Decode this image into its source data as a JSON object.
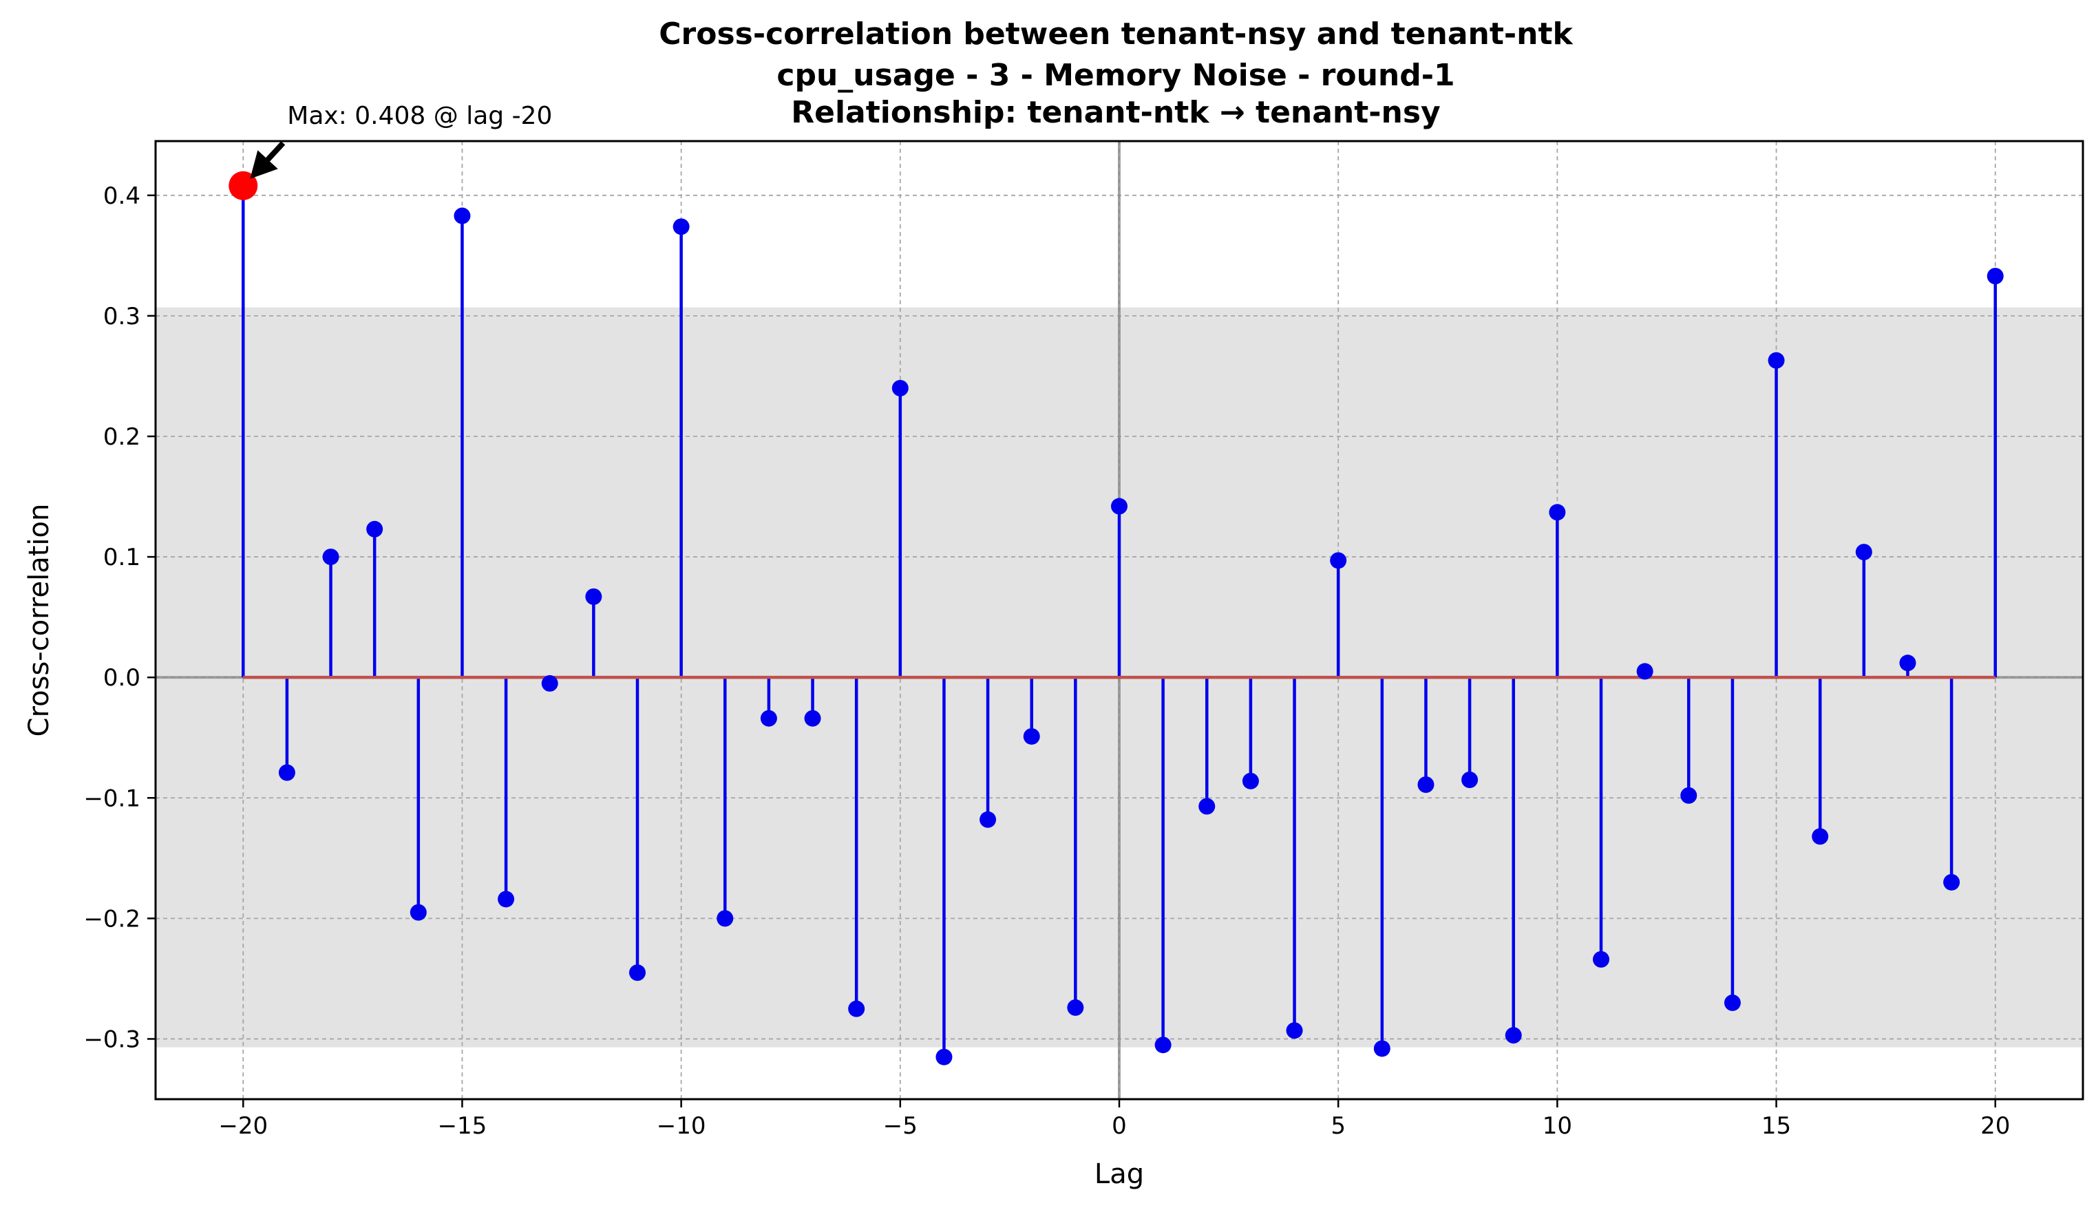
{
  "chart_data": {
    "type": "stem",
    "title_lines": [
      "Cross-correlation between tenant-nsy and tenant-ntk",
      "cpu_usage - 3 - Memory Noise - round-1",
      "Relationship: tenant-ntk → tenant-nsy"
    ],
    "xlabel": "Lag",
    "ylabel": "Cross-correlation",
    "xlim": [
      -22,
      22
    ],
    "ylim": [
      -0.35,
      0.445
    ],
    "x_ticks": [
      -20,
      -15,
      -10,
      -5,
      0,
      5,
      10,
      15,
      20
    ],
    "x_tick_labels": [
      "−20",
      "−15",
      "−10",
      "−5",
      "0",
      "5",
      "10",
      "15",
      "20"
    ],
    "y_ticks": [
      -0.3,
      -0.2,
      -0.1,
      0.0,
      0.1,
      0.2,
      0.3,
      0.4
    ],
    "y_tick_labels": [
      "−0.3",
      "−0.2",
      "−0.1",
      "0.0",
      "0.1",
      "0.2",
      "0.3",
      "0.4"
    ],
    "grid": true,
    "confidence_band": [
      -0.307,
      0.307
    ],
    "x": [
      -20,
      -19,
      -18,
      -17,
      -16,
      -15,
      -14,
      -13,
      -12,
      -11,
      -10,
      -9,
      -8,
      -7,
      -6,
      -5,
      -4,
      -3,
      -2,
      -1,
      0,
      1,
      2,
      3,
      4,
      5,
      6,
      7,
      8,
      9,
      10,
      11,
      12,
      13,
      14,
      15,
      16,
      17,
      18,
      19,
      20
    ],
    "values": [
      0.408,
      -0.079,
      0.1,
      0.123,
      -0.195,
      0.383,
      -0.184,
      -0.005,
      0.067,
      -0.245,
      0.374,
      -0.2,
      -0.034,
      -0.034,
      -0.275,
      0.24,
      -0.315,
      -0.118,
      -0.049,
      -0.274,
      0.142,
      -0.305,
      -0.107,
      -0.086,
      -0.293,
      0.097,
      -0.308,
      -0.089,
      -0.085,
      -0.297,
      0.137,
      -0.234,
      0.005,
      -0.098,
      -0.27,
      0.263,
      -0.132,
      0.104,
      0.012,
      -0.17,
      0.333
    ],
    "max_point": {
      "lag": -20,
      "value": 0.408
    },
    "annotation": "Max: 0.408 @ lag -20",
    "colors": {
      "stem": "#0000ee",
      "marker": "#0000ee",
      "baseline": "#c0504d",
      "max_marker": "#ff0000",
      "band": "#e3e3e3",
      "grid": "#a6a6a6",
      "zero_lines": "#8c8c8c",
      "arrow": "#000000"
    }
  }
}
